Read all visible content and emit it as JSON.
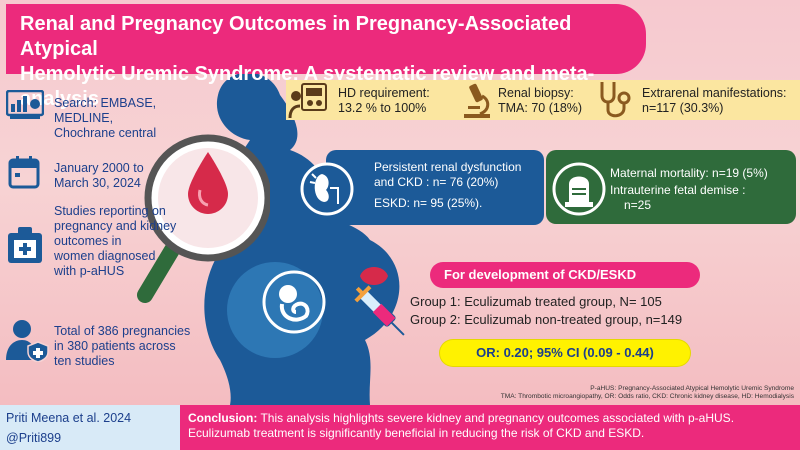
{
  "title": {
    "line1": "Renal and Pregnancy Outcomes in Pregnancy-Associated Atypical",
    "line2": "Hemolytic Uremic Syndrome: A systematic review and meta-analysis"
  },
  "left": {
    "search": [
      "Search: EMBASE,",
      "MEDLINE,",
      "Chochrane central"
    ],
    "dates": [
      "January 2000 to",
      "March 30, 2024"
    ],
    "studies": [
      "Studies reporting on",
      "pregnancy and kidney",
      "outcomes in",
      "women diagnosed",
      "with p-aHUS"
    ],
    "total": [
      "Total of 386 pregnancies",
      "in 380 patients across",
      "ten studies"
    ]
  },
  "stats": {
    "hd": [
      "HD requirement:",
      "13.2 % to 100%"
    ],
    "biopsy": [
      "Renal biopsy:",
      "TMA: 70 (18%)"
    ],
    "extrarenal": [
      "Extrarenal manifestations:",
      "n=117 (30.3%)"
    ]
  },
  "renal_box": {
    "line1": "Persistent renal dysfunction",
    "line2": "and CKD : n= 76 (20%)",
    "line3": "ESKD: n= 95 (25%)."
  },
  "maternal_box": {
    "line1": "Maternal mortality: n=19 (5%)",
    "line2": "Intrauterine fetal demise :",
    "line3": "n=25"
  },
  "ckd": {
    "heading": "For development of CKD/ESKD",
    "group1": "Group 1: Eculizumab treated group, N= 105",
    "group2": "Group 2: Eculizumab non-treated group, n=149",
    "or": "OR: 0.20; 95% CI (0.09 - 0.44)"
  },
  "abbreviations": {
    "line1": "P-aHUS: Pregnancy-Associated Atypical Hemolytic Uremic Syndrome",
    "line2": "TMA: Thrombotic microangiopathy, OR: Odds ratio, CKD: Chronic kidney disease, HD: Hemodialysis"
  },
  "footer": {
    "author": "Priti Meena et al. 2024",
    "handle": "@Priti899",
    "conclusion_label": "Conclusion:",
    "conclusion_text1": " This analysis highlights  severe kidney and pregnancy outcomes associated with p-aHUS.",
    "conclusion_text2": "Eculizumab treatment is significantly beneficial in reducing the risk of CKD and ESKD."
  },
  "colors": {
    "accent_pink": "#ec2a7c",
    "navy": "#1c5a98",
    "green": "#2f6b3b",
    "yellow": "#fff200",
    "text_blue": "#1c3f8c"
  },
  "icons": [
    "dashboard-icon",
    "calendar-icon",
    "document-icon",
    "patient-icon",
    "dialysis-icon",
    "microscope-icon",
    "stethoscope-icon",
    "kidney-icon",
    "tombstone-icon",
    "magnifier-icon",
    "pregnant-silhouette-icon",
    "syringe-icon",
    "blood-drop-icon",
    "fetus-icon"
  ]
}
